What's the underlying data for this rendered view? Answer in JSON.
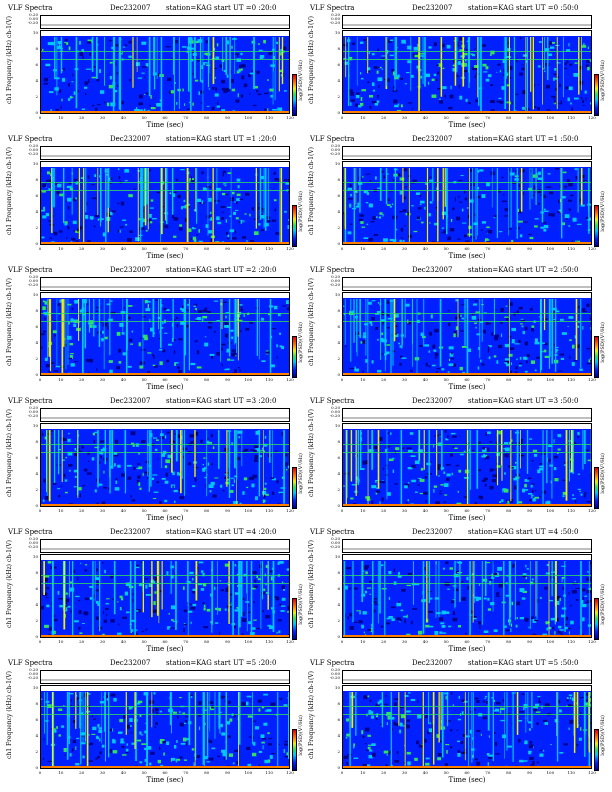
{
  "chart_data": [
    {
      "type": "heatmap",
      "header": {
        "left": "VLF Spectra",
        "date": "Dec232007",
        "right": "station=KAG  start UT =0 :20:0"
      },
      "xlabel": "Time (sec)",
      "ylabel": "ch1 Frequency (kHz)",
      "strip_label": "ch-1(V)",
      "colorbar_label": "log(PSD)(V²/Hz)",
      "xlim": [
        0,
        120
      ],
      "ylim": [
        0,
        10
      ]
    },
    {
      "type": "heatmap",
      "header": {
        "left": "VLF Spectra",
        "date": "Dec232007",
        "right": "station=KAG  start UT =0 :50:0"
      },
      "xlabel": "Time (sec)",
      "ylabel": "ch1 Frequency (kHz)",
      "strip_label": "ch-1(V)",
      "colorbar_label": "log(PSD)(V²/Hz)",
      "xlim": [
        0,
        120
      ],
      "ylim": [
        0,
        10
      ]
    },
    {
      "type": "heatmap",
      "header": {
        "left": "VLF Spectra",
        "date": "Dec232007",
        "right": "station=KAG  start UT =1 :20:0"
      },
      "xlabel": "Time (sec)",
      "ylabel": "ch1 Frequency (kHz)",
      "strip_label": "ch-1(V)",
      "colorbar_label": "log(PSD)(V²/Hz)",
      "xlim": [
        0,
        120
      ],
      "ylim": [
        0,
        10
      ]
    },
    {
      "type": "heatmap",
      "header": {
        "left": "VLF Spectra",
        "date": "Dec232007",
        "right": "station=KAG  start UT =1 :50:0"
      },
      "xlabel": "Time (sec)",
      "ylabel": "ch1 Frequency (kHz)",
      "strip_label": "ch-1(V)",
      "colorbar_label": "log(PSD)(V²/Hz)",
      "xlim": [
        0,
        120
      ],
      "ylim": [
        0,
        10
      ]
    },
    {
      "type": "heatmap",
      "header": {
        "left": "VLF Spectra",
        "date": "Dec232007",
        "right": "station=KAG  start UT =2 :20:0"
      },
      "xlabel": "Time (sec)",
      "ylabel": "ch1 Frequency (kHz)",
      "strip_label": "ch-1(V)",
      "colorbar_label": "log(PSD)(V²/Hz)",
      "xlim": [
        0,
        120
      ],
      "ylim": [
        0,
        10
      ]
    },
    {
      "type": "heatmap",
      "header": {
        "left": "VLF Spectra",
        "date": "Dec232007",
        "right": "station=KAG  start UT =2 :50:0"
      },
      "xlabel": "Time (sec)",
      "ylabel": "ch1 Frequency (kHz)",
      "strip_label": "ch-1(V)",
      "colorbar_label": "log(PSD)(V²/Hz)",
      "xlim": [
        0,
        120
      ],
      "ylim": [
        0,
        10
      ]
    },
    {
      "type": "heatmap",
      "header": {
        "left": "VLF Spectra",
        "date": "Dec232007",
        "right": "station=KAG  start UT =3 :20:0"
      },
      "xlabel": "Time (sec)",
      "ylabel": "ch1 Frequency (kHz)",
      "strip_label": "ch-1(V)",
      "colorbar_label": "log(PSD)(V²/Hz)",
      "xlim": [
        0,
        120
      ],
      "ylim": [
        0,
        10
      ]
    },
    {
      "type": "heatmap",
      "header": {
        "left": "VLF Spectra",
        "date": "Dec232007",
        "right": "station=KAG  start UT =3 :50:0"
      },
      "xlabel": "Time (sec)",
      "ylabel": "ch1 Frequency (kHz)",
      "strip_label": "ch-1(V)",
      "colorbar_label": "log(PSD)(V²/Hz)",
      "xlim": [
        0,
        120
      ],
      "ylim": [
        0,
        10
      ]
    },
    {
      "type": "heatmap",
      "header": {
        "left": "VLF Spectra",
        "date": "Dec232007",
        "right": "station=KAG  start UT =4 :20:0"
      },
      "xlabel": "Time (sec)",
      "ylabel": "ch1 Frequency (kHz)",
      "strip_label": "ch-1(V)",
      "colorbar_label": "log(PSD)(V²/Hz)",
      "xlim": [
        0,
        120
      ],
      "ylim": [
        0,
        10
      ]
    },
    {
      "type": "heatmap",
      "header": {
        "left": "VLF Spectra",
        "date": "Dec232007",
        "right": "station=KAG  start UT =4 :50:0"
      },
      "xlabel": "Time (sec)",
      "ylabel": "ch1 Frequency (kHz)",
      "strip_label": "ch-1(V)",
      "colorbar_label": "log(PSD)(V²/Hz)",
      "xlim": [
        0,
        120
      ],
      "ylim": [
        0,
        10
      ]
    },
    {
      "type": "heatmap",
      "header": {
        "left": "VLF Spectra",
        "date": "Dec232007",
        "right": "station=KAG  start UT =5 :20:0"
      },
      "xlabel": "Time (sec)",
      "ylabel": "ch1 Frequency (kHz)",
      "strip_label": "ch-1(V)",
      "colorbar_label": "log(PSD)(V²/Hz)",
      "xlim": [
        0,
        120
      ],
      "ylim": [
        0,
        10
      ]
    },
    {
      "type": "heatmap",
      "header": {
        "left": "VLF Spectra",
        "date": "Dec232007",
        "right": "station=KAG  start UT =5 :50:0"
      },
      "xlabel": "Time (sec)",
      "ylabel": "ch1 Frequency (kHz)",
      "strip_label": "ch-1(V)",
      "colorbar_label": "log(PSD)(V²/Hz)",
      "xlim": [
        0,
        120
      ],
      "ylim": [
        0,
        10
      ]
    }
  ],
  "axes": {
    "xticks": [
      "0",
      "10",
      "20",
      "30",
      "40",
      "50",
      "60",
      "70",
      "80",
      "90",
      "100",
      "110",
      "120"
    ],
    "yticks": [
      "0",
      "2",
      "4",
      "6",
      "8",
      "10"
    ],
    "strip_ticks": [
      "0.20",
      "0.00",
      "-0.20"
    ]
  },
  "colors": {
    "dark": "#00008b",
    "blue": "#0020ff",
    "cyan": "#00c8ff",
    "green": "#30e060",
    "yellow": "#f0f000",
    "orange": "#ff8000",
    "red": "#e00000"
  }
}
